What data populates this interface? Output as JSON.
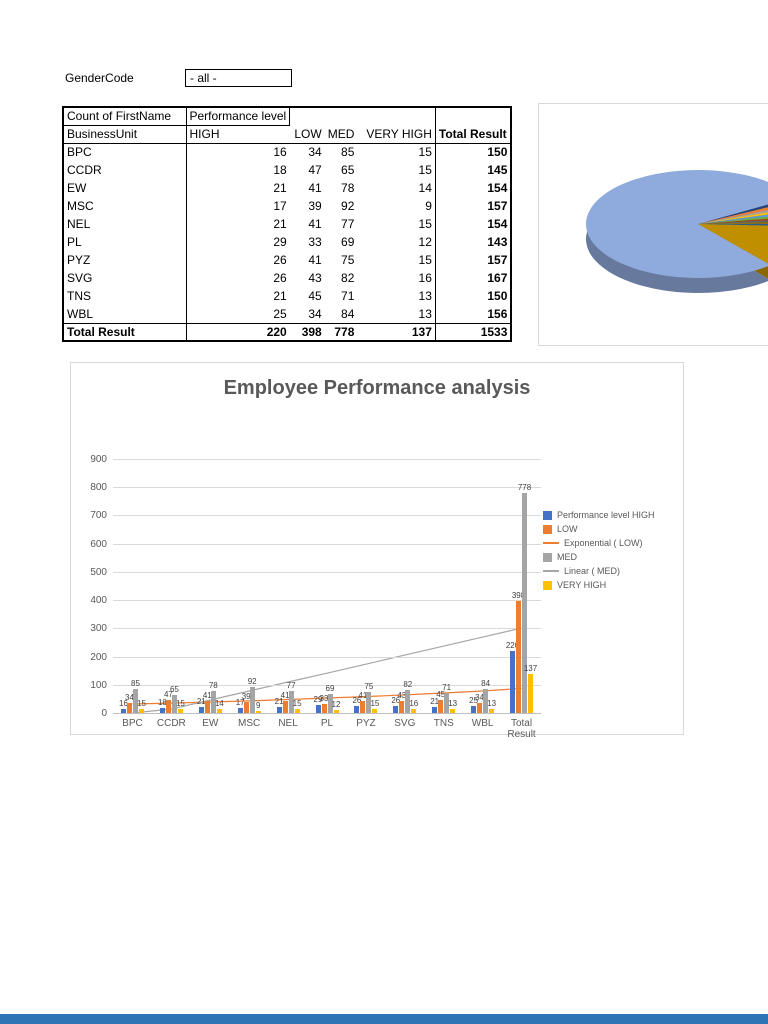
{
  "filter": {
    "label": "GenderCode",
    "value": "- all -"
  },
  "pivot_table": {
    "corner_label": "Count of FirstName",
    "column_group_label": "Performance level",
    "row_header": "BusinessUnit",
    "column_headers": [
      "HIGH",
      "LOW",
      "MED",
      "VERY HIGH",
      "Total Result"
    ],
    "rows": [
      {
        "unit": "BPC",
        "values": [
          16,
          34,
          85,
          15,
          150
        ]
      },
      {
        "unit": "CCDR",
        "values": [
          18,
          47,
          65,
          15,
          145
        ]
      },
      {
        "unit": "EW",
        "values": [
          21,
          41,
          78,
          14,
          154
        ]
      },
      {
        "unit": "MSC",
        "values": [
          17,
          39,
          92,
          9,
          157
        ]
      },
      {
        "unit": "NEL",
        "values": [
          21,
          41,
          77,
          15,
          154
        ]
      },
      {
        "unit": "PL",
        "values": [
          29,
          33,
          69,
          12,
          143
        ]
      },
      {
        "unit": "PYZ",
        "values": [
          26,
          41,
          75,
          15,
          157
        ]
      },
      {
        "unit": "SVG",
        "values": [
          26,
          43,
          82,
          16,
          167
        ]
      },
      {
        "unit": "TNS",
        "values": [
          21,
          45,
          71,
          13,
          150
        ]
      },
      {
        "unit": "WBL",
        "values": [
          25,
          34,
          84,
          13,
          156
        ]
      }
    ],
    "total_row": {
      "unit": "Total Result",
      "values": [
        220,
        398,
        778,
        137,
        1533
      ]
    }
  },
  "chart_data": [
    {
      "type": "pie",
      "style": "3d",
      "segments": [
        {
          "color": "#264478",
          "value": 1.0
        },
        {
          "color": "#ED7D31",
          "value": 1.2
        },
        {
          "color": "#A5A5A5",
          "value": 0.9
        },
        {
          "color": "#FFC000",
          "value": 0.9
        },
        {
          "color": "#5B9BD5",
          "value": 0.9
        },
        {
          "color": "#70AD47",
          "value": 1.0
        },
        {
          "color": "#9E480E",
          "value": 0.8
        },
        {
          "color": "#636363",
          "value": 0.8
        },
        {
          "color": "#997300",
          "value": 0.8
        },
        {
          "color": "#255E91",
          "value": 0.8
        },
        {
          "color": "#BF8F00",
          "value": 13.0
        },
        {
          "color": "#8FAADC",
          "value": 77.9
        }
      ]
    },
    {
      "type": "bar",
      "title": "Employee Performance analysis",
      "categories": [
        "BPC",
        "CCDR",
        "EW",
        "MSC",
        "NEL",
        "PL",
        "PYZ",
        "SVG",
        "TNS",
        "WBL",
        "Total Result"
      ],
      "series": [
        {
          "name": "Performance level HIGH",
          "color": "#4472C4",
          "values": [
            16,
            18,
            21,
            17,
            21,
            29,
            26,
            26,
            21,
            25,
            220
          ]
        },
        {
          "name": "LOW",
          "color": "#ED7D31",
          "values": [
            34,
            47,
            41,
            39,
            41,
            33,
            41,
            43,
            45,
            34,
            398
          ]
        },
        {
          "name": "MED",
          "color": "#A5A5A5",
          "values": [
            85,
            65,
            78,
            92,
            77,
            69,
            75,
            82,
            71,
            84,
            778
          ]
        },
        {
          "name": "VERY HIGH",
          "color": "#FFC000",
          "values": [
            15,
            15,
            14,
            9,
            15,
            12,
            15,
            16,
            13,
            13,
            137
          ]
        }
      ],
      "trendlines": [
        {
          "name": "Exponential ( LOW)",
          "color": "#ED7D31",
          "points": [
            32,
            35,
            39,
            43,
            48,
            53,
            58,
            64,
            71,
            78,
            87
          ]
        },
        {
          "name": "Linear ( MED)",
          "color": "#A6A6A6",
          "points": [
            -18,
            14,
            46,
            78,
            110,
            141,
            173,
            205,
            237,
            269,
            301
          ]
        }
      ],
      "legend": [
        {
          "label": "Performance level HIGH",
          "glyph": "square",
          "color": "#4472C4"
        },
        {
          "label": "LOW",
          "glyph": "square",
          "color": "#ED7D31"
        },
        {
          "label": "Exponential ( LOW)",
          "glyph": "line",
          "color": "#ED7D31"
        },
        {
          "label": "MED",
          "glyph": "square",
          "color": "#A5A5A5"
        },
        {
          "label": "Linear ( MED)",
          "glyph": "line",
          "color": "#A6A6A6"
        },
        {
          "label": "VERY HIGH",
          "glyph": "square",
          "color": "#FFC000"
        }
      ],
      "ylim": [
        0,
        900
      ],
      "ytick_step": 100,
      "grid": true,
      "legend_position": "right"
    }
  ],
  "footer": {
    "color": "#2E75B6"
  }
}
